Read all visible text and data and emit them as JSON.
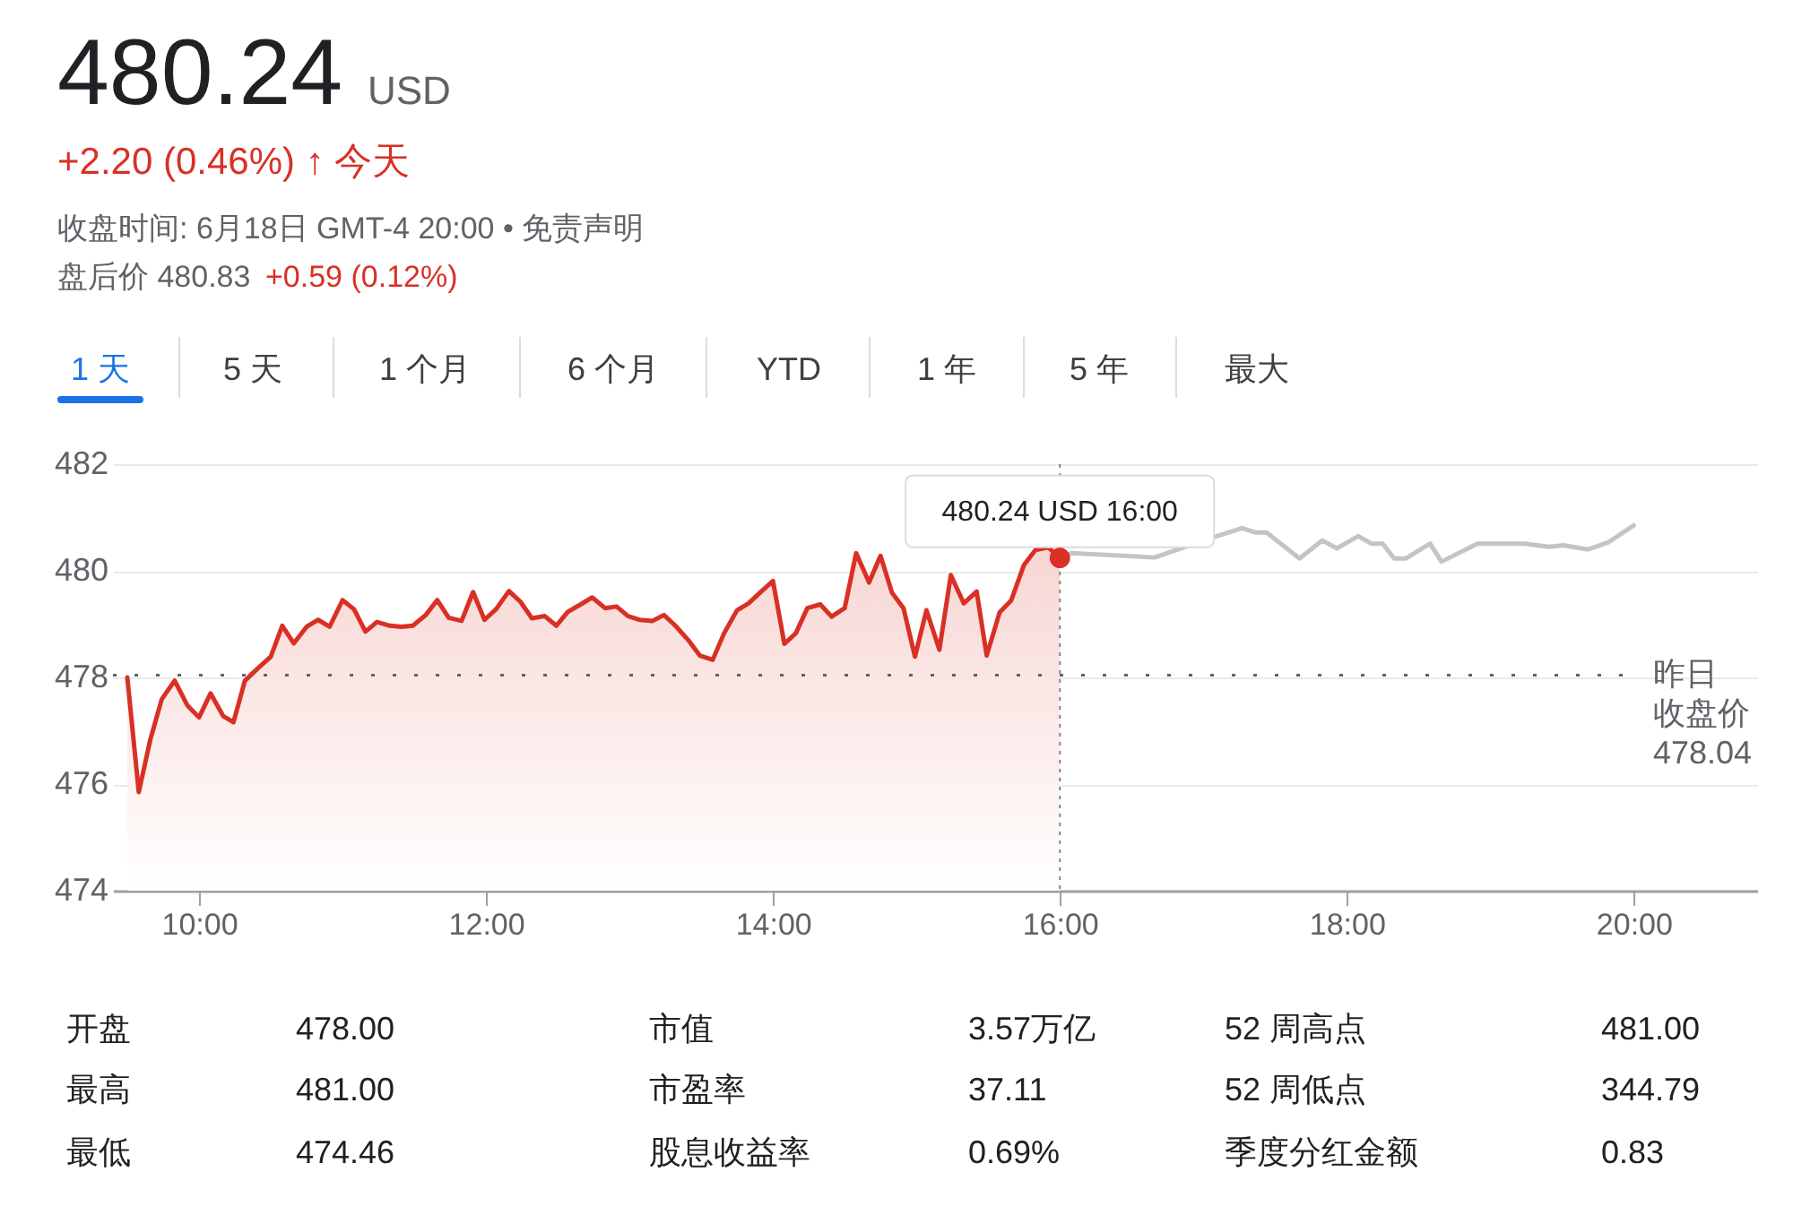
{
  "chart_data": {
    "type": "line",
    "title": "480.24",
    "annotations": [
      "USD",
      "+2.20 (0.46%) ↑ 今天",
      "收盘时间: 6月18日 GMT-4 20:00 • 免责声明",
      "盘后价 480.83",
      "+0.59 (0.12%)",
      "1 天",
      "5 天",
      "1 个月",
      "6 个月",
      "YTD",
      "1 年",
      "5 年",
      "最大",
      {
        "text": "480.24 USD 16:00",
        "x": 16,
        "y": 480.24
      },
      "开盘",
      "478.00",
      "市值",
      "3.57万亿",
      "52 周高点",
      "481.00",
      "最高",
      "481.00",
      "市盈率",
      "37.11",
      "52 周低点",
      "344.79",
      "最低",
      "474.46",
      "股息收益率",
      "0.69%",
      "季度分红金额",
      "0.83"
    ],
    "series": [
      {
        "type": "area",
        "color": "#d93025",
        "x": [
          9.5,
          9.58,
          9.66,
          9.74,
          9.83,
          9.92,
          10.0,
          10.08,
          10.17,
          10.24,
          10.32,
          10.41,
          10.5,
          10.58,
          10.66,
          10.75,
          10.83,
          10.91,
          11.0,
          11.08,
          11.16,
          11.24,
          11.33,
          11.41,
          11.49,
          11.58,
          11.66,
          11.74,
          11.83,
          11.91,
          11.99,
          12.07,
          12.16,
          12.24,
          12.32,
          12.41,
          12.49,
          12.57,
          12.66,
          12.74,
          12.83,
          12.91,
          12.99,
          13.07,
          13.16,
          13.24,
          13.32,
          13.41,
          13.49,
          13.58,
          13.66,
          13.75,
          13.83,
          13.91,
          14.0,
          14.08,
          14.16,
          14.24,
          14.33,
          14.41,
          14.5,
          14.58,
          14.67,
          14.75,
          14.83,
          14.91,
          14.99,
          15.07,
          15.16,
          15.24,
          15.33,
          15.42,
          15.49,
          15.58,
          15.66,
          15.75,
          15.83,
          15.92,
          16.0
        ],
        "values": [
          478.0,
          475.85,
          476.83,
          477.59,
          477.94,
          477.47,
          477.25,
          477.7,
          477.27,
          477.16,
          477.94,
          478.17,
          478.39,
          478.97,
          478.64,
          478.95,
          479.08,
          478.95,
          479.45,
          479.28,
          478.86,
          479.04,
          478.97,
          478.95,
          478.97,
          479.17,
          479.45,
          479.12,
          479.06,
          479.6,
          479.08,
          479.28,
          479.62,
          479.42,
          479.11,
          479.15,
          478.97,
          479.23,
          479.37,
          479.5,
          479.3,
          479.33,
          479.15,
          479.08,
          479.06,
          479.17,
          478.97,
          478.7,
          478.41,
          478.33,
          478.83,
          479.26,
          479.39,
          479.59,
          479.81,
          478.63,
          478.83,
          479.3,
          479.37,
          479.14,
          479.3,
          480.33,
          479.78,
          480.28,
          479.59,
          479.3,
          478.39,
          479.26,
          478.52,
          479.92,
          479.39,
          479.61,
          478.41,
          479.22,
          479.44,
          480.11,
          480.39,
          480.44,
          480.24
        ]
      },
      {
        "color": "#c4c4c4",
        "x": [
          16.0,
          16.08,
          16.66,
          17.07,
          17.27,
          17.36,
          17.44,
          17.67,
          17.83,
          17.93,
          18.08,
          18.17,
          18.25,
          18.33,
          18.41,
          18.58,
          18.66,
          18.91,
          19.24,
          19.41,
          19.51,
          19.68,
          19.82,
          20.0
        ],
        "values": [
          480.24,
          480.33,
          480.25,
          480.63,
          480.8,
          480.72,
          480.72,
          480.23,
          480.57,
          480.42,
          480.65,
          480.51,
          480.51,
          480.23,
          480.23,
          480.51,
          480.17,
          480.51,
          480.51,
          480.45,
          480.48,
          480.4,
          480.53,
          480.85
        ]
      },
      {
        "type": "scatter",
        "color": "#d93025",
        "marker": "circle",
        "x": [
          16.0
        ],
        "values": [
          480.24
        ]
      }
    ],
    "xlim": [
      9.4,
      20.86
    ],
    "xticks": [
      {
        "value": 10,
        "label": "10:00"
      },
      {
        "value": 12,
        "label": "12:00"
      },
      {
        "value": 14,
        "label": "14:00"
      },
      {
        "value": 16,
        "label": "16:00"
      },
      {
        "value": 18,
        "label": "18:00"
      },
      {
        "value": 20,
        "label": "20:00"
      }
    ],
    "ylim": [
      474,
      482
    ],
    "yticks": [
      474,
      476,
      478,
      480,
      482
    ],
    "ref_lines": [
      {
        "axis": "y",
        "value": 478.04,
        "label": "昨日收盘价 478.04",
        "line_style": "dotted",
        "color": "#5f6368"
      },
      {
        "axis": "x",
        "value": 16,
        "line_style": "dotted",
        "color": "#80868b"
      }
    ],
    "grid": "y"
  }
}
